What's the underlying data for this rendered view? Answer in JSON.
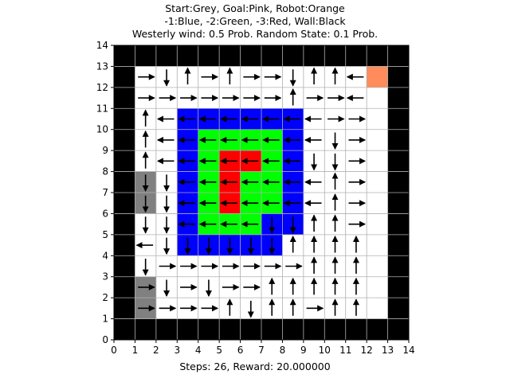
{
  "title_lines": [
    "Start:Grey, Goal:Pink, Robot:Orange",
    "-1:Blue, -2:Green, -3:Red, Wall:Black",
    "Westerly wind: 0.5 Prob. Random State: 0.1 Prob."
  ],
  "footer": "Steps: 26, Reward: 20.000000",
  "colors": {
    "wall": "#000000",
    "start": "#808080",
    "goal": "#ffc0cb",
    "robot": "#ff8c5a",
    "penalty_1": "#0000ff",
    "penalty_2": "#00ff00",
    "penalty_3": "#ff0000",
    "empty": "#ffffff",
    "grid": "#b0b0b0",
    "arrow": "#000000"
  },
  "chart_data": {
    "type": "heatmap",
    "xlim": [
      0,
      14
    ],
    "ylim": [
      0,
      14
    ],
    "xticks": [
      "0",
      "1",
      "2",
      "3",
      "4",
      "5",
      "6",
      "7",
      "8",
      "9",
      "10",
      "11",
      "12",
      "13",
      "14"
    ],
    "yticks": [
      "0",
      "1",
      "2",
      "3",
      "4",
      "5",
      "6",
      "7",
      "8",
      "9",
      "10",
      "11",
      "12",
      "13",
      "14"
    ],
    "grid": true,
    "legend": "C=start R=robot B=-1 G=-2 X=-3 W=wall .=empty",
    "cells": [
      "WWWWWWWWWWWWWW",
      "W...........RW",
      "W............W",
      "W..BBBBBB....W",
      "W..BGGGGB....W",
      "W..BGXXGB....W",
      "WC.BGXGGB....W",
      "WC.BGXGGB....W",
      "W..BGGGBB....W",
      "W..BBBBB.....W",
      "W............W",
      "WC...........W",
      "WC...........W",
      "WWWWWWWWWWWWWW"
    ],
    "policy_legend": "U=up D=down L=left R=right",
    "policy": [
      "..............",
      ".RDURURRDUUL..",
      ".RRRRRRRURRL..",
      ".ULLLLLLLLRR..",
      ".ULLLLLLLLDR..",
      ".ULLLLLLLDDR..",
      ".DDLLLLLLLUR..",
      ".DDLLLLLLLUR..",
      ".DDLLLLDDUUR..",
      ".LDDDDDDUUUU..",
      ".DRRRRRRRUUU..",
      ".RDRDRRUUUUU..",
      ".RRRRUDUURUU..",
      ".............."
    ]
  }
}
